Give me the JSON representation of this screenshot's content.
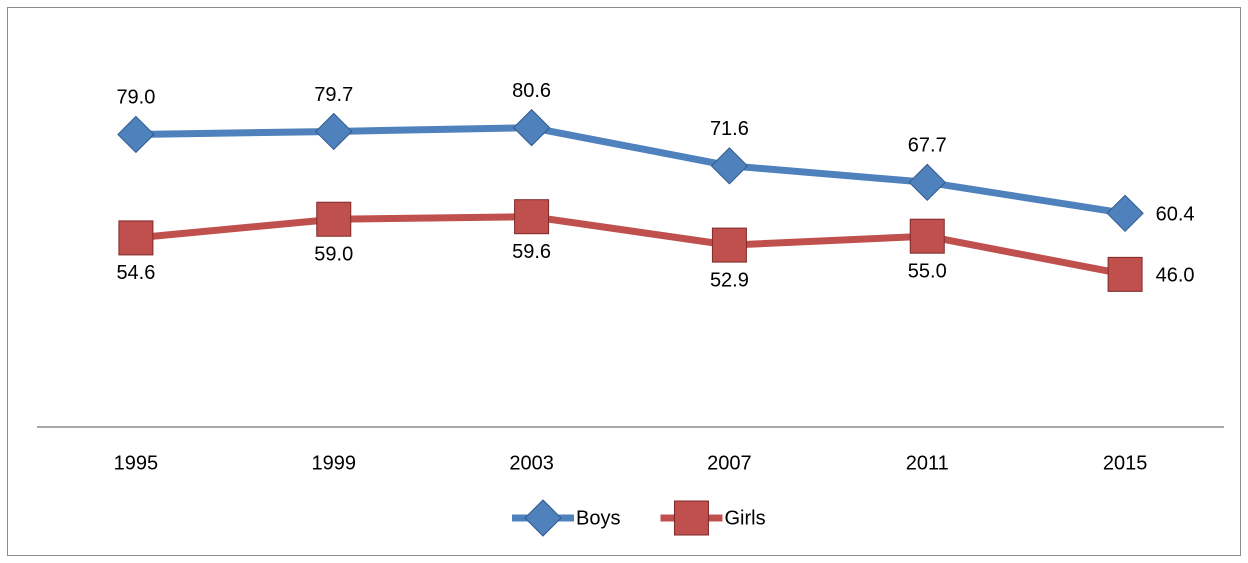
{
  "chart_data": {
    "type": "line",
    "categories": [
      "1995",
      "1999",
      "2003",
      "2007",
      "2011",
      "2015"
    ],
    "series": [
      {
        "name": "Boys",
        "color": "#4f81bd",
        "marker": "diamond",
        "values": [
          79,
          79.7,
          80.6,
          71.6,
          67.7,
          60.4
        ],
        "value_labels": [
          "79.0",
          "79.7",
          "80.6",
          "71.6",
          "67.7",
          "60.4"
        ]
      },
      {
        "name": "Girls",
        "color": "#c0504d",
        "marker": "square",
        "values": [
          54.6,
          59,
          59.6,
          52.9,
          55,
          46
        ],
        "value_labels": [
          "54.6",
          "59.0",
          "59.6",
          "52.9",
          "55.0",
          "46.0"
        ]
      }
    ],
    "ylim": [
      10,
      90
    ],
    "legend": "bottom"
  }
}
